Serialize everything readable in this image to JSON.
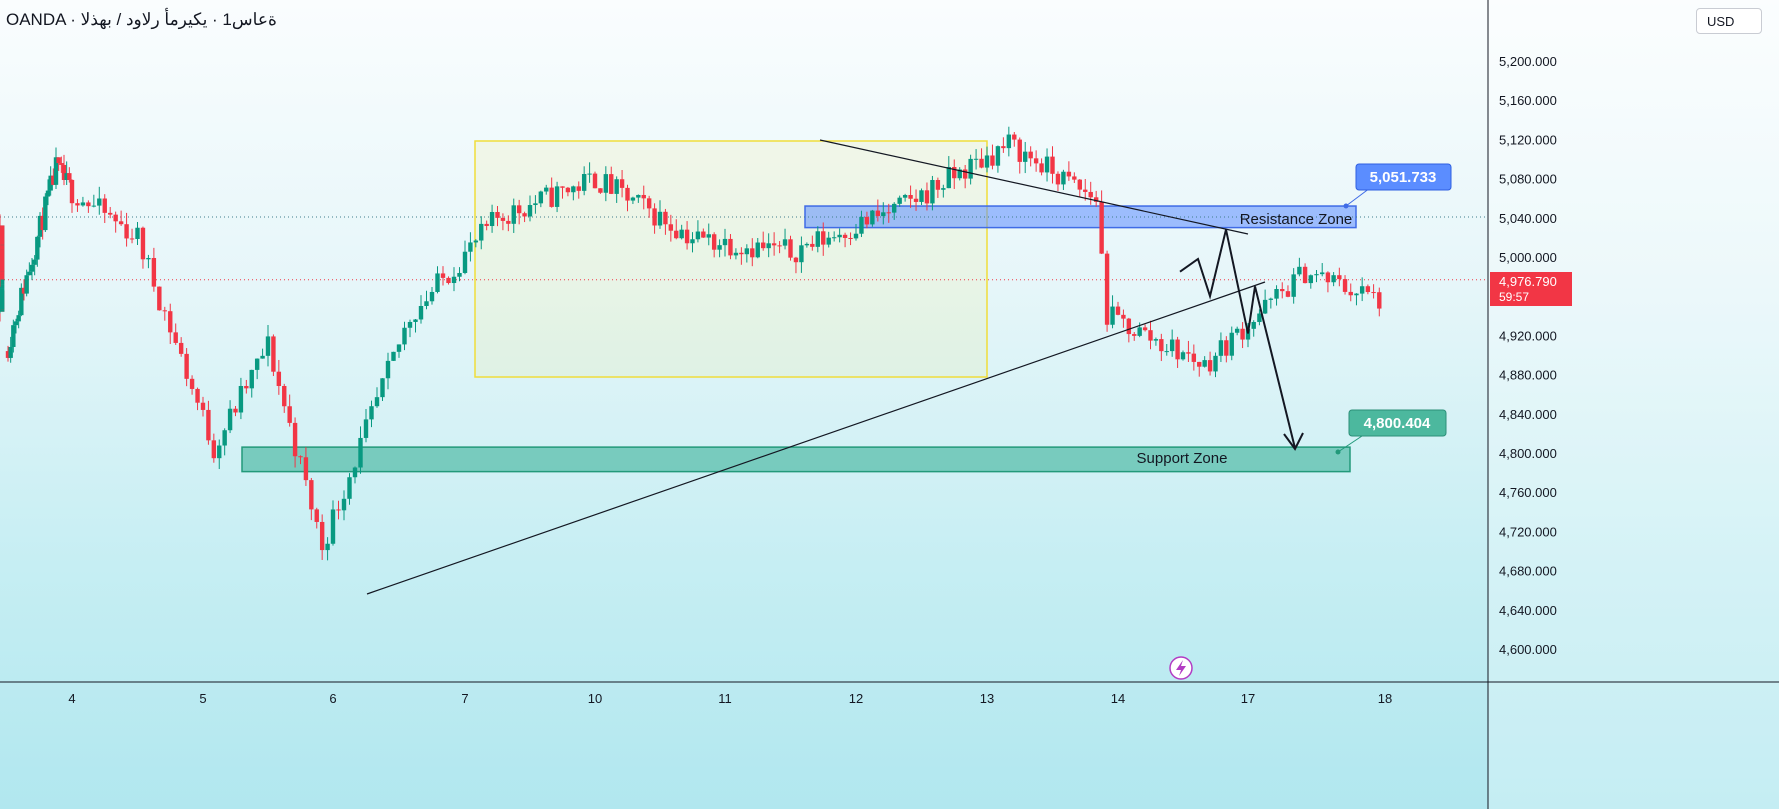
{
  "header": {
    "symbol_title": "OANDA · ةعاس1 · يكيرمأ رلاود / بهذلا",
    "currency_button": "USD"
  },
  "price_axis": {
    "current_price_label": "4,976.790",
    "countdown_label": "59:57",
    "current_price_color": "#f23645"
  },
  "annotations": {
    "resistance_label": "Resistance Zone",
    "support_label": "Support Zone",
    "resistance_price_tag": "5,051.733",
    "support_price_tag": "4,800.404"
  },
  "colors": {
    "up": "#089981",
    "down": "#f23645",
    "resistance_zone": "#5b8dff",
    "support_zone": "#2eab8f",
    "range_box": "#f5e663"
  },
  "chart_data": {
    "type": "candlestick",
    "x_ticks": [
      "4",
      "5",
      "6",
      "7",
      "10",
      "11",
      "12",
      "13",
      "14",
      "17",
      "18"
    ],
    "y_ticks": [
      "5,200.000",
      "5,160.000",
      "5,120.000",
      "5,080.000",
      "5,040.000",
      "5,000.000",
      "4,920.000",
      "4,880.000",
      "4,840.000",
      "4,800.000",
      "4,760.000",
      "4,720.000",
      "4,680.000",
      "4,640.000",
      "4,600.000"
    ],
    "ylim": [
      4570,
      5240
    ],
    "grid": false,
    "current_price": 4976.79,
    "zones": [
      {
        "name": "Resistance Zone",
        "low": 5030,
        "high": 5052
      },
      {
        "name": "Support Zone",
        "low": 4781,
        "high": 4806
      }
    ],
    "anchor_prices": [
      {
        "date": "4",
        "price": 4910
      },
      {
        "date": "4",
        "price": 5090
      },
      {
        "date": "5",
        "price": 5020
      },
      {
        "date": "5",
        "price": 4805
      },
      {
        "date": "6",
        "price": 4910
      },
      {
        "date": "6",
        "price": 4705
      },
      {
        "date": "7",
        "price": 4940
      },
      {
        "date": "7",
        "price": 5040
      },
      {
        "date": "10",
        "price": 5080
      },
      {
        "date": "10",
        "price": 5020
      },
      {
        "date": "11",
        "price": 5005
      },
      {
        "date": "11",
        "price": 5050
      },
      {
        "date": "12",
        "price": 5115
      },
      {
        "date": "12",
        "price": 5065
      },
      {
        "date": "13",
        "price": 5060
      },
      {
        "date": "13",
        "price": 4940
      },
      {
        "date": "13",
        "price": 4890
      },
      {
        "date": "13",
        "price": 4985
      },
      {
        "date": "14",
        "price": 4945
      },
      {
        "date": "14",
        "price": 5030
      },
      {
        "date": "14",
        "price": 4977
      }
    ],
    "projection_path": [
      4985,
      4998,
      4960,
      5028,
      4922,
      4970,
      4805
    ]
  }
}
